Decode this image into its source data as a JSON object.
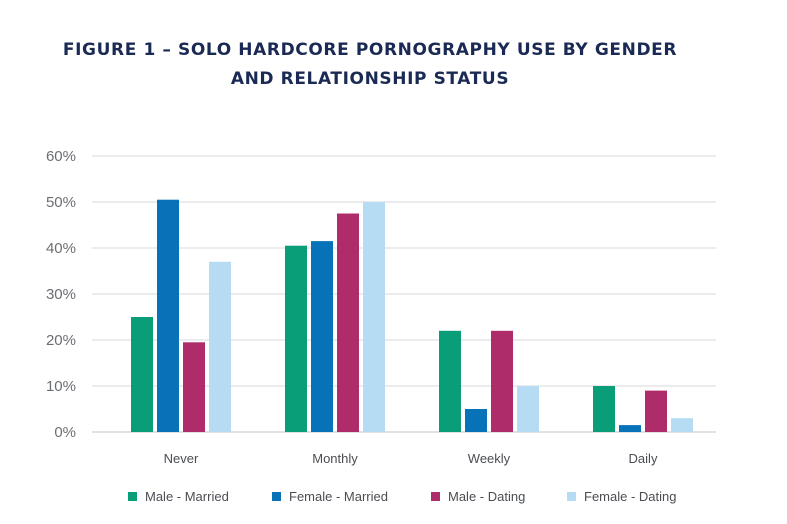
{
  "chart_data": {
    "type": "bar",
    "title_line1": "FIGURE 1 – SOLO HARDCORE PORNOGRAPHY USE BY GENDER",
    "title_line2": "AND RELATIONSHIP STATUS",
    "categories": [
      "Never",
      "Monthly",
      "Weekly",
      "Daily"
    ],
    "series": [
      {
        "name": "Male - Married",
        "color": "#0a9e78",
        "values": [
          25,
          40.5,
          22,
          10
        ]
      },
      {
        "name": "Female - Married",
        "color": "#0872b9",
        "values": [
          50.5,
          41.5,
          5,
          1.5
        ]
      },
      {
        "name": "Male - Dating",
        "color": "#ad2c69",
        "values": [
          19.5,
          47.5,
          22,
          9
        ]
      },
      {
        "name": "Female - Dating",
        "color": "#b5dcf2",
        "values": [
          37,
          50,
          10,
          3
        ]
      }
    ],
    "ylim": [
      0,
      60
    ],
    "yticks": [
      "0%",
      "10%",
      "20%",
      "30%",
      "40%",
      "50%",
      "60%"
    ],
    "grid": true,
    "legend_position": "bottom"
  }
}
